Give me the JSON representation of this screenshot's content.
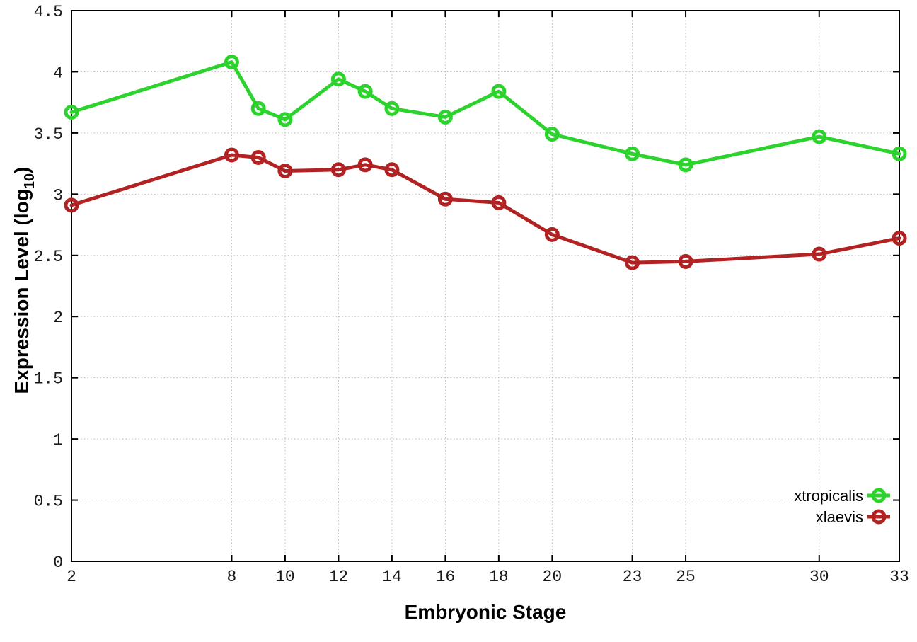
{
  "chart_data": {
    "type": "line",
    "title": "",
    "xlabel": "Embryonic Stage",
    "ylabel": "Expression Level (log10)",
    "ylabel_parts": {
      "main": "Expression Level (log",
      "sub": "10",
      "end": ")"
    },
    "xlim": [
      2,
      33
    ],
    "ylim": [
      0,
      4.5
    ],
    "grid": true,
    "grid_style": "dotted",
    "legend_position": "inside-bottom-right",
    "x_tick_labels": [
      "2",
      "8",
      "10",
      "12",
      "14",
      "16",
      "18",
      "20",
      "23",
      "25",
      "30",
      "33"
    ],
    "x_tick_values": [
      2,
      8,
      10,
      12,
      14,
      16,
      18,
      20,
      23,
      25,
      30,
      33
    ],
    "y_tick_labels": [
      "0",
      "0.5",
      "1",
      "1.5",
      "2",
      "2.5",
      "3",
      "3.5",
      "4",
      "4.5"
    ],
    "y_tick_values": [
      0,
      0.5,
      1,
      1.5,
      2,
      2.5,
      3,
      3.5,
      4,
      4.5
    ],
    "x": [
      2,
      8,
      9,
      10,
      12,
      13,
      14,
      16,
      18,
      20,
      23,
      25,
      30,
      33
    ],
    "series": [
      {
        "name": "xtropicalis",
        "color": "#2cd32c",
        "marker": "open-circle",
        "values": [
          3.67,
          4.08,
          3.7,
          3.61,
          3.94,
          3.84,
          3.7,
          3.63,
          3.84,
          3.49,
          3.33,
          3.24,
          3.47,
          3.33
        ]
      },
      {
        "name": "xlaevis",
        "color": "#b22222",
        "marker": "open-circle",
        "values": [
          2.91,
          3.32,
          3.3,
          3.19,
          3.2,
          3.24,
          3.2,
          2.96,
          2.93,
          2.67,
          2.44,
          2.45,
          2.51,
          2.64
        ]
      }
    ],
    "colors": {
      "border": "#000000",
      "grid": "#bbbbbb",
      "tick_text": "#1a1a1a"
    }
  }
}
